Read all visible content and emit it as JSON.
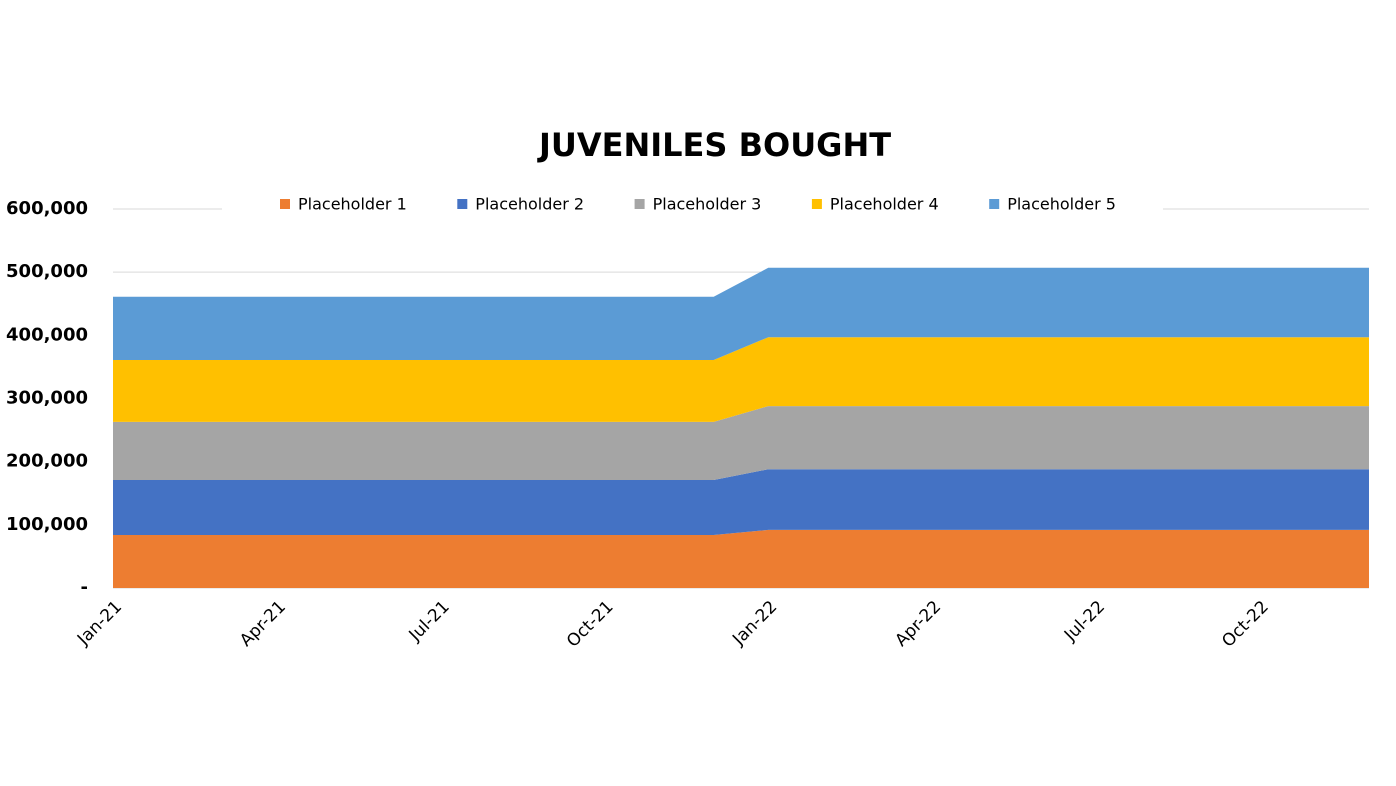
{
  "chart_data": {
    "type": "stacked-area",
    "title": "JUVENILES BOUGHT",
    "categories": [
      "Jan-21",
      null,
      null,
      "Apr-21",
      null,
      null,
      "Jul-21",
      null,
      null,
      "Oct-21",
      null,
      null,
      "Jan-22",
      null,
      null,
      "Apr-22",
      null,
      null,
      "Jul-22",
      null,
      null,
      "Oct-22",
      null,
      null
    ],
    "series": [
      {
        "name": "Placeholder 1",
        "color": "#ed7d31",
        "values": [
          84000,
          84000,
          84000,
          84000,
          84000,
          84000,
          84000,
          84000,
          84000,
          84000,
          84000,
          84000,
          92000,
          92000,
          92000,
          92000,
          92000,
          92000,
          92000,
          92000,
          92000,
          92000,
          92000,
          92000
        ]
      },
      {
        "name": "Placeholder 2",
        "color": "#4472c4",
        "values": [
          87000,
          87000,
          87000,
          87000,
          87000,
          87000,
          87000,
          87000,
          87000,
          87000,
          87000,
          87000,
          96000,
          96000,
          96000,
          96000,
          96000,
          96000,
          96000,
          96000,
          96000,
          96000,
          96000,
          96000
        ]
      },
      {
        "name": "Placeholder 3",
        "color": "#a5a5a5",
        "values": [
          92000,
          92000,
          92000,
          92000,
          92000,
          92000,
          92000,
          92000,
          92000,
          92000,
          92000,
          92000,
          100000,
          100000,
          100000,
          100000,
          100000,
          100000,
          100000,
          100000,
          100000,
          100000,
          100000,
          100000
        ]
      },
      {
        "name": "Placeholder 4",
        "color": "#ffc000",
        "values": [
          98000,
          98000,
          98000,
          98000,
          98000,
          98000,
          98000,
          98000,
          98000,
          98000,
          98000,
          98000,
          109000,
          109000,
          109000,
          109000,
          109000,
          109000,
          109000,
          109000,
          109000,
          109000,
          109000,
          109000
        ]
      },
      {
        "name": "Placeholder 5",
        "color": "#5b9bd5",
        "values": [
          100000,
          100000,
          100000,
          100000,
          100000,
          100000,
          100000,
          100000,
          100000,
          100000,
          100000,
          100000,
          110000,
          110000,
          110000,
          110000,
          110000,
          110000,
          110000,
          110000,
          110000,
          110000,
          110000,
          110000
        ]
      }
    ],
    "ylim": [
      0,
      600000
    ],
    "yticks": [
      {
        "value": 0,
        "label": "-"
      },
      {
        "value": 100000,
        "label": "100,000"
      },
      {
        "value": 200000,
        "label": "200,000"
      },
      {
        "value": 300000,
        "label": "300,000"
      },
      {
        "value": 400000,
        "label": "400,000"
      },
      {
        "value": 500000,
        "label": "500,000"
      },
      {
        "value": 600000,
        "label": "600,000"
      }
    ],
    "grid": true,
    "legend": "top"
  }
}
